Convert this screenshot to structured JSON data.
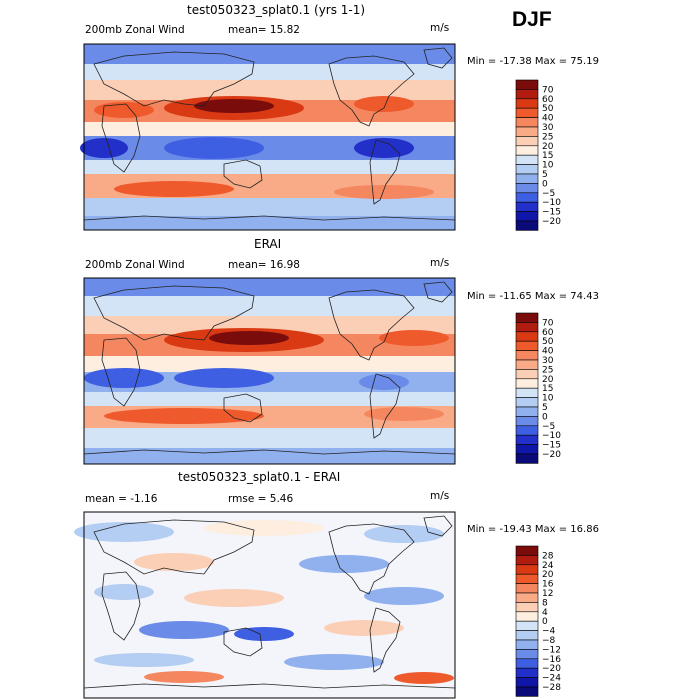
{
  "season": "DJF",
  "colors": {
    "land_outline": "#222222",
    "frame": "#000000"
  },
  "panels": [
    {
      "title": "test050323_splat0.1 (yrs 1-1)",
      "left_label": "200mb Zonal Wind",
      "stat_label": "mean=  15.82",
      "units": "m/s",
      "minmax": "Min = -17.38 Max =  75.19",
      "colorbar": {
        "labels": [
          "70",
          "60",
          "50",
          "40",
          "30",
          "25",
          "20",
          "15",
          "10",
          "5",
          "0",
          "−5",
          "−10",
          "−15",
          "−20"
        ],
        "colors": [
          "#7a0c0c",
          "#b01d10",
          "#d93a14",
          "#ef5a2c",
          "#f58760",
          "#f9aa86",
          "#fbcfb6",
          "#fdeee0",
          "#d4e4f7",
          "#b4cdf2",
          "#90b1ed",
          "#6a8ce8",
          "#3f5fe2",
          "#2230c9",
          "#1017a8",
          "#0a0a78"
        ]
      }
    },
    {
      "title": "ERAI",
      "left_label": "200mb Zonal Wind",
      "stat_label": "mean=  16.98",
      "units": "m/s",
      "minmax": "Min = -11.65 Max =  74.43",
      "colorbar": {
        "labels": [
          "70",
          "60",
          "50",
          "40",
          "30",
          "25",
          "20",
          "15",
          "10",
          "5",
          "0",
          "−5",
          "−10",
          "−15",
          "−20"
        ],
        "colors": [
          "#7a0c0c",
          "#b01d10",
          "#d93a14",
          "#ef5a2c",
          "#f58760",
          "#f9aa86",
          "#fbcfb6",
          "#fdeee0",
          "#d4e4f7",
          "#b4cdf2",
          "#90b1ed",
          "#6a8ce8",
          "#3f5fe2",
          "#2230c9",
          "#1017a8",
          "#0a0a78"
        ]
      }
    },
    {
      "title": "test050323_splat0.1 - ERAI",
      "left_label": "mean =  -1.16",
      "stat_label": "rmse =   5.46",
      "units": "m/s",
      "minmax": "Min = -19.43 Max =  16.86",
      "colorbar": {
        "labels": [
          "28",
          "24",
          "20",
          "16",
          "12",
          "8",
          "4",
          "0",
          "−4",
          "−8",
          "−12",
          "−16",
          "−20",
          "−24",
          "−28"
        ],
        "colors": [
          "#7a0c0c",
          "#b01d10",
          "#d93a14",
          "#ef5a2c",
          "#f58760",
          "#f9aa86",
          "#fbcfb6",
          "#fdeee0",
          "#d4e4f7",
          "#b4cdf2",
          "#90b1ed",
          "#6a8ce8",
          "#3f5fe2",
          "#2230c9",
          "#1017a8",
          "#0a0a78"
        ]
      }
    }
  ]
}
